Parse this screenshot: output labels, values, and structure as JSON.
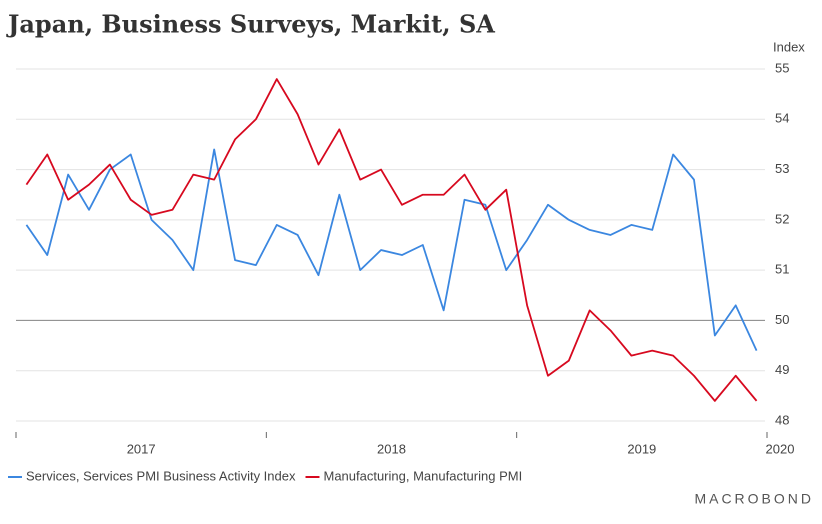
{
  "chart_data": {
    "type": "line",
    "title": "Japan, Business Surveys, Markit, SA",
    "y_axis_label": "Index",
    "source": "MACROBOND",
    "x": [
      "2017-01",
      "2017-02",
      "2017-03",
      "2017-04",
      "2017-05",
      "2017-06",
      "2017-07",
      "2017-08",
      "2017-09",
      "2017-10",
      "2017-11",
      "2017-12",
      "2018-01",
      "2018-02",
      "2018-03",
      "2018-04",
      "2018-05",
      "2018-06",
      "2018-07",
      "2018-08",
      "2018-09",
      "2018-10",
      "2018-11",
      "2018-12",
      "2019-01",
      "2019-02",
      "2019-03",
      "2019-04",
      "2019-05",
      "2019-06",
      "2019-07",
      "2019-08",
      "2019-09",
      "2019-10",
      "2019-11",
      "2019-12"
    ],
    "series": [
      {
        "name": "Services, Services PMI Business Activity Index",
        "color": "#3b87e0",
        "values": [
          51.9,
          51.3,
          52.9,
          52.2,
          53.0,
          53.3,
          52.0,
          51.6,
          51.0,
          53.4,
          51.2,
          51.1,
          51.9,
          51.7,
          50.9,
          52.5,
          51.0,
          51.4,
          51.3,
          51.5,
          50.2,
          52.4,
          52.3,
          51.0,
          51.6,
          52.3,
          52.0,
          51.8,
          51.7,
          51.9,
          51.8,
          53.3,
          52.8,
          49.7,
          50.3,
          49.4
        ]
      },
      {
        "name": "Manufacturing, Manufacturing PMI",
        "color": "#d7091f",
        "values": [
          52.7,
          53.3,
          52.4,
          52.7,
          53.1,
          52.4,
          52.1,
          52.2,
          52.9,
          52.8,
          53.6,
          54.0,
          54.8,
          54.1,
          53.1,
          53.8,
          52.8,
          53.0,
          52.3,
          52.5,
          52.5,
          52.9,
          52.2,
          52.6,
          50.3,
          48.9,
          49.2,
          50.2,
          49.8,
          49.3,
          49.4,
          49.3,
          48.9,
          48.4,
          48.9,
          48.4
        ]
      }
    ],
    "xlim": [
      2017,
      2020
    ],
    "xticks": [
      2017,
      2018,
      2019,
      2020
    ],
    "ylim": [
      48,
      55
    ],
    "yticks": [
      48,
      49,
      50,
      51,
      52,
      53,
      54,
      55
    ],
    "reference_line": 50,
    "grid": true,
    "legend": "bottom"
  }
}
